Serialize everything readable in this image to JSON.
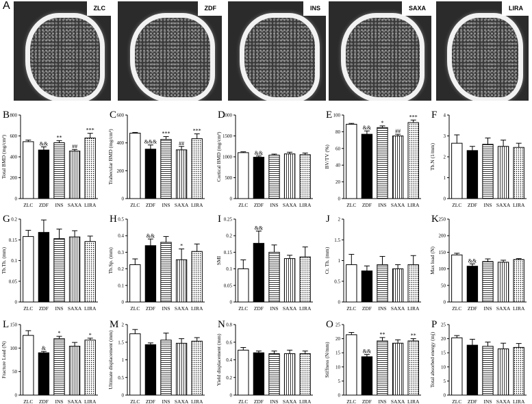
{
  "figure": {
    "scans": [
      {
        "letter": "A",
        "label": "ZLC"
      },
      {
        "label": "ZDF"
      },
      {
        "label": "INS"
      },
      {
        "label": "SAXA"
      },
      {
        "label": "LIRA"
      }
    ]
  },
  "groups": [
    "ZLC",
    "ZDF",
    "INS",
    "SAXA",
    "LIRA"
  ],
  "chart_data": [
    {
      "type": "bar",
      "letter": "B",
      "ylabel": "Total BMD (mg/cm³)",
      "ylim": [
        0,
        800
      ],
      "ticks": [
        0,
        200,
        400,
        600,
        800
      ],
      "categories": [
        "ZLC",
        "ZDF",
        "INS",
        "SAXA",
        "LIRA"
      ],
      "values": [
        545,
        465,
        535,
        455,
        580
      ],
      "errors": [
        15,
        30,
        20,
        15,
        45
      ],
      "annotations": [
        "",
        "&&",
        "**",
        "##",
        "***"
      ]
    },
    {
      "type": "bar",
      "letter": "C",
      "ylabel": "Trabecular BMD (mg/cm³)",
      "ylim": [
        0,
        600
      ],
      "ticks": [
        0,
        200,
        400,
        600
      ],
      "categories": [
        "ZLC",
        "ZDF",
        "INS",
        "SAXA",
        "LIRA"
      ],
      "values": [
        470,
        355,
        425,
        350,
        430
      ],
      "errors": [
        5,
        30,
        20,
        25,
        35
      ],
      "annotations": [
        "",
        "&&&",
        "***",
        "##",
        "***"
      ]
    },
    {
      "type": "bar",
      "letter": "D",
      "ylabel": "Cortical BMD (mg/cm³)",
      "ylim": [
        0,
        2000
      ],
      "ticks": [
        0,
        500,
        1000,
        1500,
        2000
      ],
      "categories": [
        "ZLC",
        "ZDF",
        "INS",
        "SAXA",
        "LIRA"
      ],
      "values": [
        1100,
        990,
        1040,
        1070,
        1050
      ],
      "errors": [
        20,
        30,
        25,
        40,
        40
      ],
      "annotations": [
        "",
        "&&",
        "",
        "",
        ""
      ]
    },
    {
      "type": "bar",
      "letter": "E",
      "ylabel": "BV/TV (%)",
      "ylim": [
        0,
        100
      ],
      "ticks": [
        0,
        20,
        40,
        60,
        80,
        100
      ],
      "categories": [
        "ZLC",
        "ZDF",
        "INS",
        "SAXA",
        "LIRA"
      ],
      "values": [
        89,
        77,
        85,
        75,
        91
      ],
      "errors": [
        1,
        4,
        2,
        2,
        3
      ],
      "annotations": [
        "",
        "&&",
        "*",
        "##",
        "***"
      ]
    },
    {
      "type": "bar",
      "letter": "F",
      "ylabel": "Tb.N (1/mm)",
      "ylim": [
        0,
        4
      ],
      "ticks": [
        0,
        1,
        2,
        3,
        4
      ],
      "categories": [
        "ZLC",
        "ZDF",
        "INS",
        "SAXA",
        "LIRA"
      ],
      "values": [
        2.65,
        2.3,
        2.6,
        2.5,
        2.45
      ],
      "errors": [
        0.4,
        0.2,
        0.3,
        0.3,
        0.2
      ],
      "annotations": [
        "",
        "",
        "",
        "",
        ""
      ]
    },
    {
      "type": "bar",
      "letter": "G",
      "ylabel": "Tb.Th. (mm)",
      "ylim": [
        0,
        0.2
      ],
      "ticks": [
        0,
        0.05,
        0.1,
        0.15,
        0.2
      ],
      "categories": [
        "ZLC",
        "ZDF",
        "INS",
        "SAXA",
        "LIRA"
      ],
      "values": [
        0.158,
        0.168,
        0.153,
        0.157,
        0.146
      ],
      "errors": [
        0.015,
        0.03,
        0.023,
        0.015,
        0.013
      ],
      "annotations": [
        "",
        "",
        "",
        "",
        ""
      ]
    },
    {
      "type": "bar",
      "letter": "H",
      "ylabel": "Tb.Sp. (mm)",
      "ylim": [
        0,
        0.5
      ],
      "ticks": [
        0,
        0.1,
        0.2,
        0.3,
        0.4,
        0.5
      ],
      "categories": [
        "ZLC",
        "ZDF",
        "INS",
        "SAXA",
        "LIRA"
      ],
      "values": [
        0.225,
        0.34,
        0.36,
        0.255,
        0.305
      ],
      "errors": [
        0.035,
        0.04,
        0.035,
        0.065,
        0.045
      ],
      "annotations": [
        "",
        "&&",
        "",
        "*",
        ""
      ]
    },
    {
      "type": "bar",
      "letter": "I",
      "ylabel": "SMI",
      "ylim": [
        0,
        0.25
      ],
      "ticks": [
        0,
        0.05,
        0.1,
        0.15,
        0.2,
        0.25
      ],
      "categories": [
        "ZLC",
        "ZDF",
        "INS",
        "SAXA",
        "LIRA"
      ],
      "values": [
        0.1,
        0.177,
        0.15,
        0.131,
        0.136
      ],
      "errors": [
        0.027,
        0.037,
        0.022,
        0.01,
        0.03
      ],
      "annotations": [
        "",
        "&&",
        "",
        "",
        ""
      ]
    },
    {
      "type": "bar",
      "letter": "J",
      "ylabel": "Ct. Th. (mm)",
      "ylim": [
        0,
        2
      ],
      "ticks": [
        0,
        0.5,
        1,
        1.5,
        2
      ],
      "categories": [
        "ZLC",
        "ZDF",
        "INS",
        "SAXA",
        "LIRA"
      ],
      "values": [
        0.9,
        0.75,
        0.9,
        0.8,
        0.9
      ],
      "errors": [
        0.25,
        0.12,
        0.2,
        0.1,
        0.22
      ],
      "annotations": [
        "",
        "",
        "",
        "",
        ""
      ]
    },
    {
      "type": "bar",
      "letter": "K",
      "ylabel": "Max load (N)",
      "ylim": [
        0,
        250
      ],
      "ticks": [
        0,
        50,
        100,
        150,
        200,
        250
      ],
      "categories": [
        "ZLC",
        "ZDF",
        "INS",
        "SAXA",
        "LIRA"
      ],
      "values": [
        142,
        108,
        122,
        120,
        128
      ],
      "errors": [
        5,
        7,
        8,
        6,
        3
      ],
      "annotations": [
        "",
        "&&",
        "",
        "",
        ""
      ]
    },
    {
      "type": "bar",
      "letter": "L",
      "ylabel": "Fracture Load (N)",
      "ylim": [
        0,
        150
      ],
      "ticks": [
        0,
        50,
        100,
        150
      ],
      "categories": [
        "ZLC",
        "ZDF",
        "INS",
        "SAXA",
        "LIRA"
      ],
      "values": [
        127,
        90,
        120,
        104,
        117
      ],
      "errors": [
        10,
        3,
        5,
        8,
        4
      ],
      "annotations": [
        "",
        "&",
        "*",
        "",
        "*"
      ]
    },
    {
      "type": "bar",
      "letter": "M",
      "ylabel": "Ultimate displacement (mm)",
      "ylim": [
        0,
        2
      ],
      "ticks": [
        0,
        0.5,
        1,
        1.5,
        2
      ],
      "categories": [
        "ZLC",
        "ZDF",
        "INS",
        "SAXA",
        "LIRA"
      ],
      "values": [
        1.74,
        1.43,
        1.56,
        1.47,
        1.53
      ],
      "errors": [
        0.12,
        0.05,
        0.2,
        0.13,
        0.1
      ],
      "annotations": [
        "",
        "",
        "",
        "",
        ""
      ]
    },
    {
      "type": "bar",
      "letter": "N",
      "ylabel": "Yield displacement (mm)",
      "ylim": [
        0,
        0.8
      ],
      "ticks": [
        0,
        0.2,
        0.4,
        0.6,
        0.8
      ],
      "categories": [
        "ZLC",
        "ZDF",
        "INS",
        "SAXA",
        "LIRA"
      ],
      "values": [
        0.51,
        0.48,
        0.47,
        0.47,
        0.47
      ],
      "errors": [
        0.03,
        0.02,
        0.03,
        0.04,
        0.03
      ],
      "annotations": [
        "",
        "",
        "",
        "",
        ""
      ]
    },
    {
      "type": "bar",
      "letter": "O",
      "ylabel": "Stiffness (N/mm)",
      "ylim": [
        0,
        25
      ],
      "ticks": [
        0,
        5,
        10,
        15,
        20,
        25
      ],
      "categories": [
        "ZLC",
        "ZDF",
        "INS",
        "SAXA",
        "LIRA"
      ],
      "values": [
        21.4,
        13.6,
        19.2,
        18.4,
        19.2
      ],
      "errors": [
        0.8,
        0.8,
        1.2,
        1.2,
        0.8
      ],
      "annotations": [
        "",
        "&&",
        "**",
        "",
        "**"
      ]
    },
    {
      "type": "bar",
      "letter": "P",
      "ylabel": "Total absorbed energy (mj)",
      "ylim": [
        0,
        25
      ],
      "ticks": [
        0,
        5,
        10,
        15,
        20,
        25
      ],
      "categories": [
        "ZLC",
        "ZDF",
        "INS",
        "SAXA",
        "LIRA"
      ],
      "values": [
        20.3,
        17.7,
        17.3,
        16.4,
        16.9
      ],
      "errors": [
        0.8,
        2.1,
        1.5,
        2.0,
        1.4
      ],
      "annotations": [
        "",
        "",
        "",
        "",
        ""
      ]
    }
  ]
}
